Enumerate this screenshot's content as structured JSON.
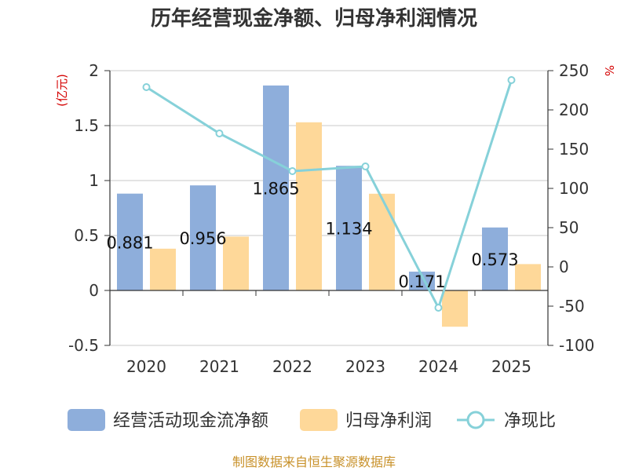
{
  "chart_data": {
    "type": "bar",
    "title": "历年经营现金净额、归母净利润情况",
    "categories": [
      "2020",
      "2021",
      "2022",
      "2023",
      "2024",
      "2025"
    ],
    "left_axis": {
      "unit": "(亿元)",
      "range": [
        -0.5,
        2
      ],
      "ticks": [
        "-0.5",
        "0",
        "0.5",
        "1",
        "1.5",
        "2"
      ],
      "tick_values": [
        -0.5,
        0,
        0.5,
        1,
        1.5,
        2
      ]
    },
    "right_axis": {
      "unit": "%",
      "range": [
        -100,
        250
      ],
      "ticks": [
        "-100",
        "-50",
        "0",
        "50",
        "100",
        "150",
        "200",
        "250"
      ],
      "tick_values": [
        -100,
        -50,
        0,
        50,
        100,
        150,
        200,
        250
      ]
    },
    "series": [
      {
        "name": "经营活动现金流净额",
        "kind": "bar",
        "axis": "left",
        "color": "#8eaedb",
        "values": [
          0.881,
          0.956,
          1.865,
          1.134,
          0.171,
          0.573
        ],
        "labels": [
          "0.881",
          "0.956",
          "1.865",
          "1.134",
          "0.171",
          "0.573"
        ]
      },
      {
        "name": "归母净利润",
        "kind": "bar",
        "axis": "left",
        "color": "#fed899",
        "values": [
          0.38,
          0.49,
          1.53,
          0.88,
          -0.33,
          0.24
        ]
      },
      {
        "name": "净现比",
        "kind": "line",
        "axis": "right",
        "color": "#86d1d9",
        "values": [
          229,
          170,
          122,
          128,
          -52,
          238
        ]
      }
    ],
    "legend": {
      "position": "bottom",
      "labels": [
        "经营活动现金流净额",
        "归母净利润",
        "净现比"
      ]
    },
    "source": "制图数据来自恒生聚源数据库"
  }
}
